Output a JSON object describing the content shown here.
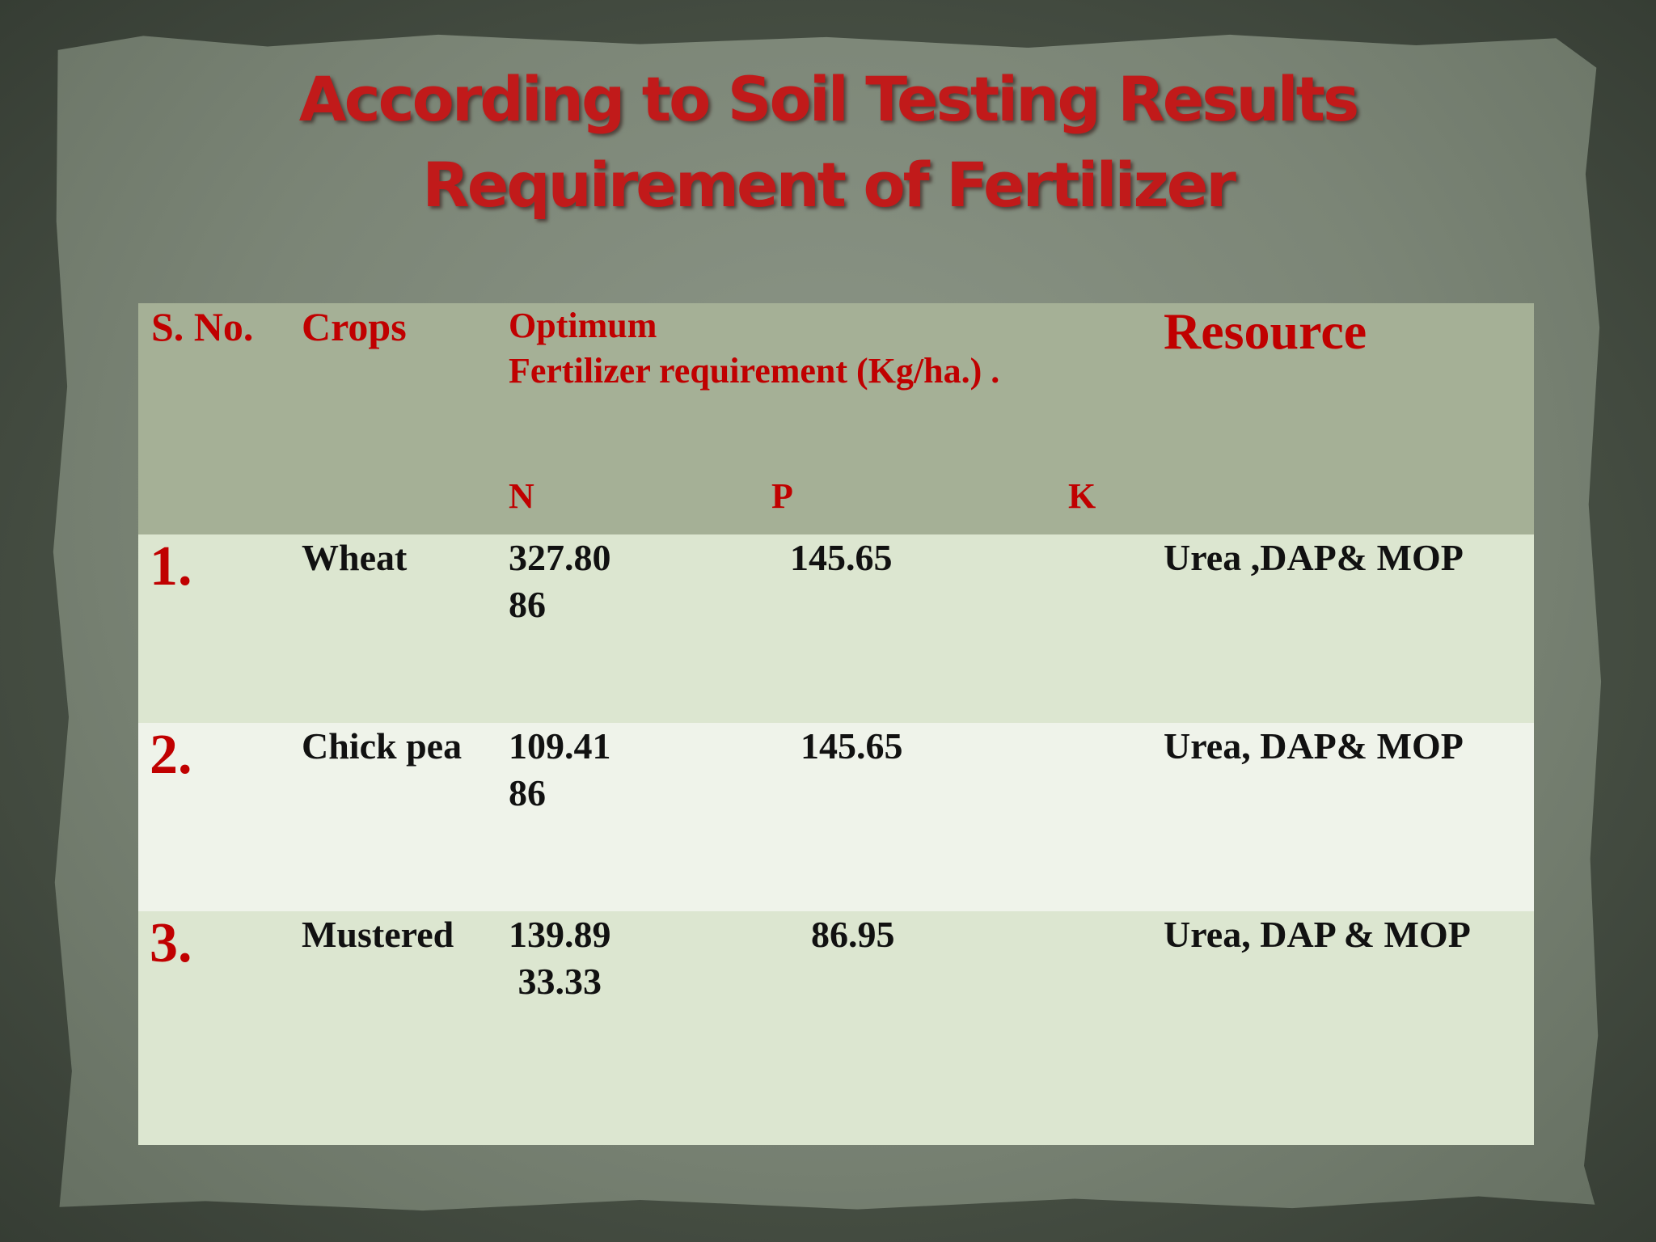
{
  "title": {
    "line1": "According to Soil Testing Results",
    "line2": "Requirement of Fertilizer"
  },
  "table": {
    "headers": {
      "sno": "S. No.",
      "crops": "Crops",
      "optimum": "Optimum",
      "requirement": "Fertilizer requirement (Kg/ha.) .",
      "n": "N",
      "p": "P",
      "k": "K",
      "resource": "Resource"
    },
    "rows": [
      {
        "sno": "1.",
        "crop": "Wheat",
        "n_line1": "327.80",
        "n_line2": "86",
        "p": "145.65",
        "resource": "Urea ,DAP& MOP"
      },
      {
        "sno": "2.",
        "crop": "Chick pea",
        "n_line1": "109.41",
        "n_line2": "86",
        "p": "145.65",
        "resource": "Urea, DAP& MOP"
      },
      {
        "sno": "3.",
        "crop": "Mustered",
        "n_line1": "139.89",
        "n_line2": " 33.33",
        "p": "86.95",
        "resource": "Urea, DAP & MOP"
      }
    ]
  },
  "colors": {
    "title": "#c11a1a",
    "header_bg": "#a5b096",
    "row_light": "#dce6d0",
    "row_lighter": "#eff3ea",
    "accent_red": "#c00000"
  }
}
